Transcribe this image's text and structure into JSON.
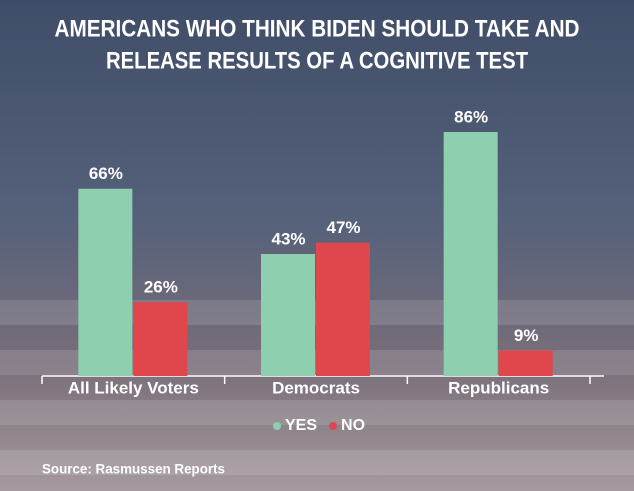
{
  "chart_data": {
    "type": "bar",
    "title": [
      "AMERICANS WHO THINK BIDEN SHOULD TAKE AND",
      "RELEASE RESULTS OF A COGNITIVE TEST"
    ],
    "categories": [
      "All Likely Voters",
      "Democrats",
      "Republicans"
    ],
    "series": [
      {
        "name": "YES",
        "color": "#8ecfb0",
        "values": [
          66,
          43,
          86
        ],
        "value_labels": [
          "66%",
          "43%",
          "86%"
        ]
      },
      {
        "name": "NO",
        "color": "#e0474c",
        "values": [
          26,
          47,
          9
        ],
        "value_labels": [
          "26%",
          "47%",
          "9%"
        ]
      }
    ],
    "source": "Source: Rasmussen Reports"
  }
}
